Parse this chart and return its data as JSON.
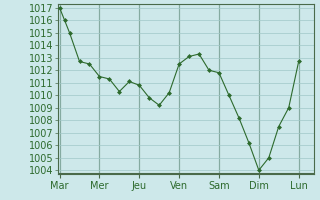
{
  "x_labels": [
    "Mar",
    "Mer",
    "Jeu",
    "Ven",
    "Sam",
    "Dim",
    "Lun"
  ],
  "x_ticks": [
    0,
    4,
    8,
    12,
    16,
    20,
    24
  ],
  "x_values": [
    0,
    0.5,
    1,
    2,
    3,
    4,
    5,
    6,
    7,
    8,
    9,
    10,
    11,
    12,
    13,
    14,
    15,
    16,
    17,
    18,
    19,
    20,
    21,
    22,
    23,
    24
  ],
  "y_values": [
    1017,
    1016,
    1015,
    1012.7,
    1012.5,
    1011.5,
    1011.3,
    1010.3,
    1011.1,
    1010.8,
    1009.8,
    1009.2,
    1010.2,
    1012.5,
    1013.1,
    1013.3,
    1012,
    1011.8,
    1010,
    1008.2,
    1006.2,
    1004.0,
    1005.0,
    1007.5,
    1009.0,
    1012.7
  ],
  "ylim": [
    1004,
    1017
  ],
  "yticks": [
    1004,
    1005,
    1006,
    1007,
    1008,
    1009,
    1010,
    1011,
    1012,
    1013,
    1014,
    1015,
    1016,
    1017
  ],
  "line_color": "#2d6a2d",
  "marker_color": "#2d6a2d",
  "bg_color": "#cde8ea",
  "grid_color": "#a0c8c8",
  "border_color": "#4a6a4a",
  "fontsize": 7,
  "tick_label_color": "#2d6a2d"
}
